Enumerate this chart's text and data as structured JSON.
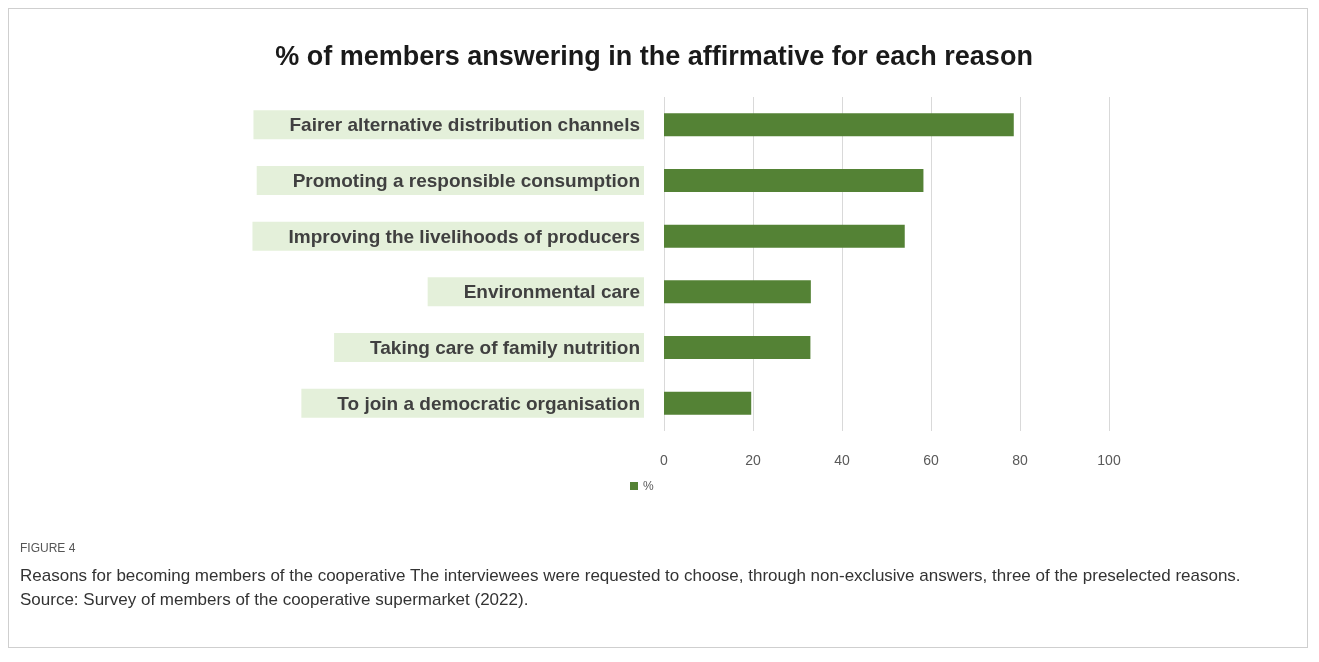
{
  "chart_data": {
    "type": "bar",
    "orientation": "horizontal",
    "title": "% of members answering in the affirmative for each reason",
    "categories": [
      "Fairer alternative distribution channels",
      "Promoting a responsible consumption",
      "Improving the livelihoods of producers",
      "Environmental care",
      "Taking care of family nutrition",
      "To join a democratic organisation"
    ],
    "series": [
      {
        "name": "%",
        "color": "#548235",
        "values": [
          78.6,
          58.3,
          54.1,
          33.0,
          32.9,
          19.6
        ]
      }
    ],
    "xlim": [
      0,
      100
    ],
    "xticks": [
      0,
      20,
      40,
      60,
      80,
      100
    ],
    "grid": "x",
    "legend": "bottom",
    "annotations": [
      "FIGURE 4",
      "Reasons for becoming members of the cooperative The interviewees were requested to choose, through non-exclusive answers, three of the preselected reasons. Source: Survey of members of the cooperative supermarket (2022)."
    ]
  }
}
